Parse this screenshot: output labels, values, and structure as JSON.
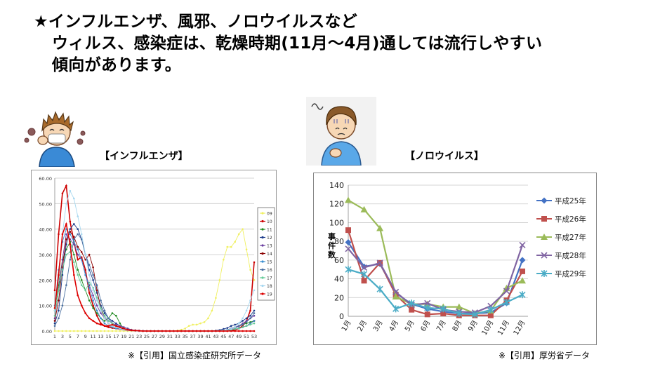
{
  "headline": {
    "line1": "★インフルエンザ、風邪、ノロウイルスなど",
    "line2": "ウィルス、感染症は、乾燥時期(11月～4月)通しては流行しやすい",
    "line3": "傾向があります。"
  },
  "labels": {
    "influenza_title": "【インフルエンザ】",
    "noro_title": "【ノロウイルス】",
    "influenza_source": "※【引用】国立感染症研究所データ",
    "noro_source": "※【引用】厚労省データ"
  },
  "colors": {
    "noro": [
      "#4472C4",
      "#C0504D",
      "#9BBB59",
      "#8064A2",
      "#4BACC6"
    ],
    "influenza": [
      "#f0f060",
      "#cc0000",
      "#228b22",
      "#1a3a8a",
      "#6a3fa0",
      "#8b0000",
      "#3c8fd0",
      "#4a6fa0",
      "#66cc99",
      "#a8d8f0",
      "#dd0000"
    ]
  },
  "chart_data": [
    {
      "type": "line",
      "name": "influenza",
      "ylim": [
        0,
        60
      ],
      "yticks": [
        "0.00",
        "10.00",
        "20.00",
        "30.00",
        "40.00",
        "50.00",
        "60.00"
      ],
      "xticks": [
        "1",
        "3",
        "5",
        "7",
        "9",
        "11",
        "13",
        "15",
        "17",
        "19",
        "21",
        "23",
        "25",
        "27",
        "29",
        "31",
        "33",
        "35",
        "37",
        "39",
        "41",
        "43",
        "45",
        "47",
        "49",
        "51",
        "53"
      ],
      "series": [
        {
          "name": "09",
          "values": [
            0,
            0,
            0,
            0,
            0,
            0,
            0,
            0,
            0,
            0,
            0,
            0,
            0,
            0,
            0,
            0,
            0,
            0,
            0,
            0,
            0,
            0,
            0,
            0,
            0,
            0,
            0,
            0,
            0,
            0,
            0,
            0,
            0.2,
            0.5,
            1,
            2,
            2.5,
            2.5,
            3,
            3.5,
            5,
            8,
            13,
            20,
            28,
            33,
            33,
            35,
            38,
            40,
            32,
            24,
            20
          ]
        },
        {
          "name": "10",
          "values": [
            16,
            38,
            54,
            57,
            43,
            35,
            28,
            29,
            24,
            15,
            10,
            6,
            3,
            2,
            1.5,
            1.2,
            1,
            0.8,
            0.5,
            0.3,
            0.2,
            0.1,
            0,
            0,
            0,
            0,
            0,
            0,
            0,
            0,
            0,
            0,
            0,
            0,
            0,
            0,
            0,
            0,
            0,
            0,
            0,
            0,
            0,
            0,
            0,
            0,
            0.2,
            0.5,
            1,
            2,
            4,
            8,
            27
          ]
        },
        {
          "name": "11",
          "values": [
            8,
            18,
            28,
            32,
            35,
            30,
            24,
            20,
            16,
            12,
            9,
            7,
            5,
            4,
            5,
            7,
            6,
            3,
            1,
            0.5,
            0.3,
            0.2,
            0.1,
            0,
            0,
            0,
            0,
            0,
            0,
            0,
            0,
            0,
            0,
            0,
            0,
            0,
            0,
            0,
            0,
            0,
            0,
            0,
            0.1,
            0.2,
            0.3,
            0.5,
            1,
            1.5,
            2,
            2.5,
            3,
            3.5,
            4
          ]
        },
        {
          "name": "12",
          "values": [
            3,
            8,
            22,
            34,
            40,
            42,
            40,
            36,
            30,
            24,
            20,
            15,
            10,
            7,
            5,
            4,
            3,
            2,
            1.5,
            1,
            0.5,
            0.3,
            0.2,
            0.1,
            0,
            0,
            0,
            0,
            0,
            0,
            0,
            0,
            0,
            0,
            0,
            0,
            0,
            0,
            0,
            0,
            0,
            0,
            0.2,
            0.4,
            0.8,
            1.2,
            2,
            2.5,
            3,
            4,
            5,
            6,
            8
          ]
        },
        {
          "name": "13",
          "values": [
            5,
            16,
            28,
            38,
            36,
            34,
            30,
            28,
            22,
            18,
            14,
            10,
            7,
            5,
            4,
            3,
            2.5,
            2,
            1.5,
            1,
            0.5,
            0.3,
            0.2,
            0.1,
            0,
            0,
            0,
            0,
            0,
            0,
            0,
            0,
            0,
            0,
            0,
            0,
            0,
            0,
            0,
            0,
            0,
            0,
            0.1,
            0.2,
            0.3,
            0.5,
            1,
            1.5,
            2,
            3,
            4,
            5,
            6
          ]
        },
        {
          "name": "14",
          "values": [
            4,
            12,
            25,
            36,
            39,
            37,
            33,
            31,
            28,
            30,
            25,
            16,
            9,
            5,
            3,
            2,
            1.5,
            1,
            0.8,
            0.5,
            0.3,
            0.2,
            0.1,
            0,
            0,
            0,
            0,
            0,
            0,
            0,
            0,
            0,
            0,
            0,
            0,
            0,
            0,
            0,
            0,
            0,
            0,
            0,
            0,
            0.1,
            0.2,
            0.3,
            0.5,
            0.8,
            1,
            1.5,
            2,
            3,
            4
          ]
        },
        {
          "name": "15",
          "values": [
            10,
            24,
            35,
            40,
            38,
            35,
            32,
            28,
            22,
            17,
            12,
            8,
            5,
            3,
            2,
            1.5,
            1,
            0.8,
            0.5,
            0.3,
            0.2,
            0.1,
            0,
            0,
            0,
            0,
            0,
            0,
            0,
            0,
            0,
            0,
            0,
            0,
            0,
            0,
            0,
            0,
            0,
            0,
            0,
            0,
            0,
            0.1,
            0.2,
            0.3,
            0.5,
            0.8,
            1,
            1.5,
            2,
            3,
            4
          ]
        },
        {
          "name": "16",
          "values": [
            2,
            5,
            10,
            18,
            28,
            36,
            38,
            36,
            30,
            26,
            22,
            18,
            12,
            8,
            5,
            3,
            2,
            1.5,
            1,
            0.5,
            0.3,
            0.2,
            0.1,
            0,
            0,
            0,
            0,
            0,
            0,
            0,
            0,
            0,
            0,
            0,
            0,
            0,
            0,
            0,
            0,
            0,
            0,
            0,
            0.1,
            0.2,
            0.3,
            0.5,
            0.8,
            1.2,
            1.8,
            2.5,
            3.5,
            5,
            7
          ]
        },
        {
          "name": "17",
          "values": [
            6,
            16,
            24,
            30,
            31,
            27,
            22,
            18,
            16,
            19,
            17,
            13,
            9,
            6,
            4,
            3,
            2,
            1.5,
            1,
            0.5,
            0.3,
            0.2,
            0.1,
            0,
            0,
            0,
            0,
            0,
            0,
            0,
            0,
            0,
            0,
            0,
            0,
            0,
            0,
            0,
            0,
            0,
            0,
            0,
            0,
            0.1,
            0.2,
            0.3,
            0.5,
            0.8,
            1,
            1.5,
            2,
            2.5,
            3
          ]
        },
        {
          "name": "18",
          "values": [
            8,
            20,
            38,
            50,
            55,
            52,
            45,
            38,
            30,
            22,
            16,
            12,
            8,
            5,
            3,
            2,
            1.5,
            1,
            0.5,
            0.3,
            0.2,
            0.1,
            0,
            0,
            0,
            0,
            0,
            0,
            0,
            0,
            0,
            0,
            0,
            0,
            0,
            0,
            0,
            0,
            0,
            0,
            0,
            0,
            0,
            0.1,
            0.2,
            0.4,
            0.8,
            1.5,
            3,
            5,
            8,
            12,
            16
          ]
        },
        {
          "name": "19",
          "values": [
            9,
            22,
            38,
            42,
            34,
            22,
            14,
            10,
            7,
            5,
            4,
            3,
            2.5,
            2,
            2,
            2.5,
            2,
            1.5,
            1,
            0.5,
            0.3,
            0.2,
            0.1,
            0,
            0,
            0,
            0,
            0,
            0,
            0,
            0,
            0,
            0,
            0,
            0,
            0,
            0,
            0,
            0,
            0,
            0,
            0,
            0,
            0,
            0,
            0,
            0,
            0,
            0,
            0,
            0,
            0,
            0
          ]
        }
      ]
    },
    {
      "type": "line",
      "name": "norovirus",
      "ylabel": "事件数",
      "ylim": [
        0,
        140
      ],
      "yticks": [
        0,
        20,
        40,
        60,
        80,
        100,
        120,
        140
      ],
      "categories": [
        "1月",
        "2月",
        "3月",
        "4月",
        "5月",
        "6月",
        "7月",
        "8月",
        "9月",
        "10月",
        "11月",
        "12月"
      ],
      "series": [
        {
          "name": "平成25年",
          "values": [
            79,
            53,
            56,
            25,
            13,
            8,
            5,
            3,
            3,
            4,
            14,
            60
          ]
        },
        {
          "name": "平成26年",
          "values": [
            92,
            38,
            57,
            23,
            7,
            2,
            3,
            1,
            1,
            1,
            17,
            48
          ]
        },
        {
          "name": "平成27年",
          "values": [
            124,
            114,
            94,
            21,
            13,
            13,
            10,
            10,
            3,
            6,
            30,
            38
          ]
        },
        {
          "name": "平成28年",
          "values": [
            72,
            52,
            57,
            26,
            12,
            14,
            7,
            5,
            4,
            11,
            27,
            76
          ]
        },
        {
          "name": "平成29年",
          "values": [
            50,
            45,
            29,
            8,
            14,
            9,
            8,
            3,
            2,
            7,
            15,
            23
          ]
        }
      ]
    }
  ]
}
